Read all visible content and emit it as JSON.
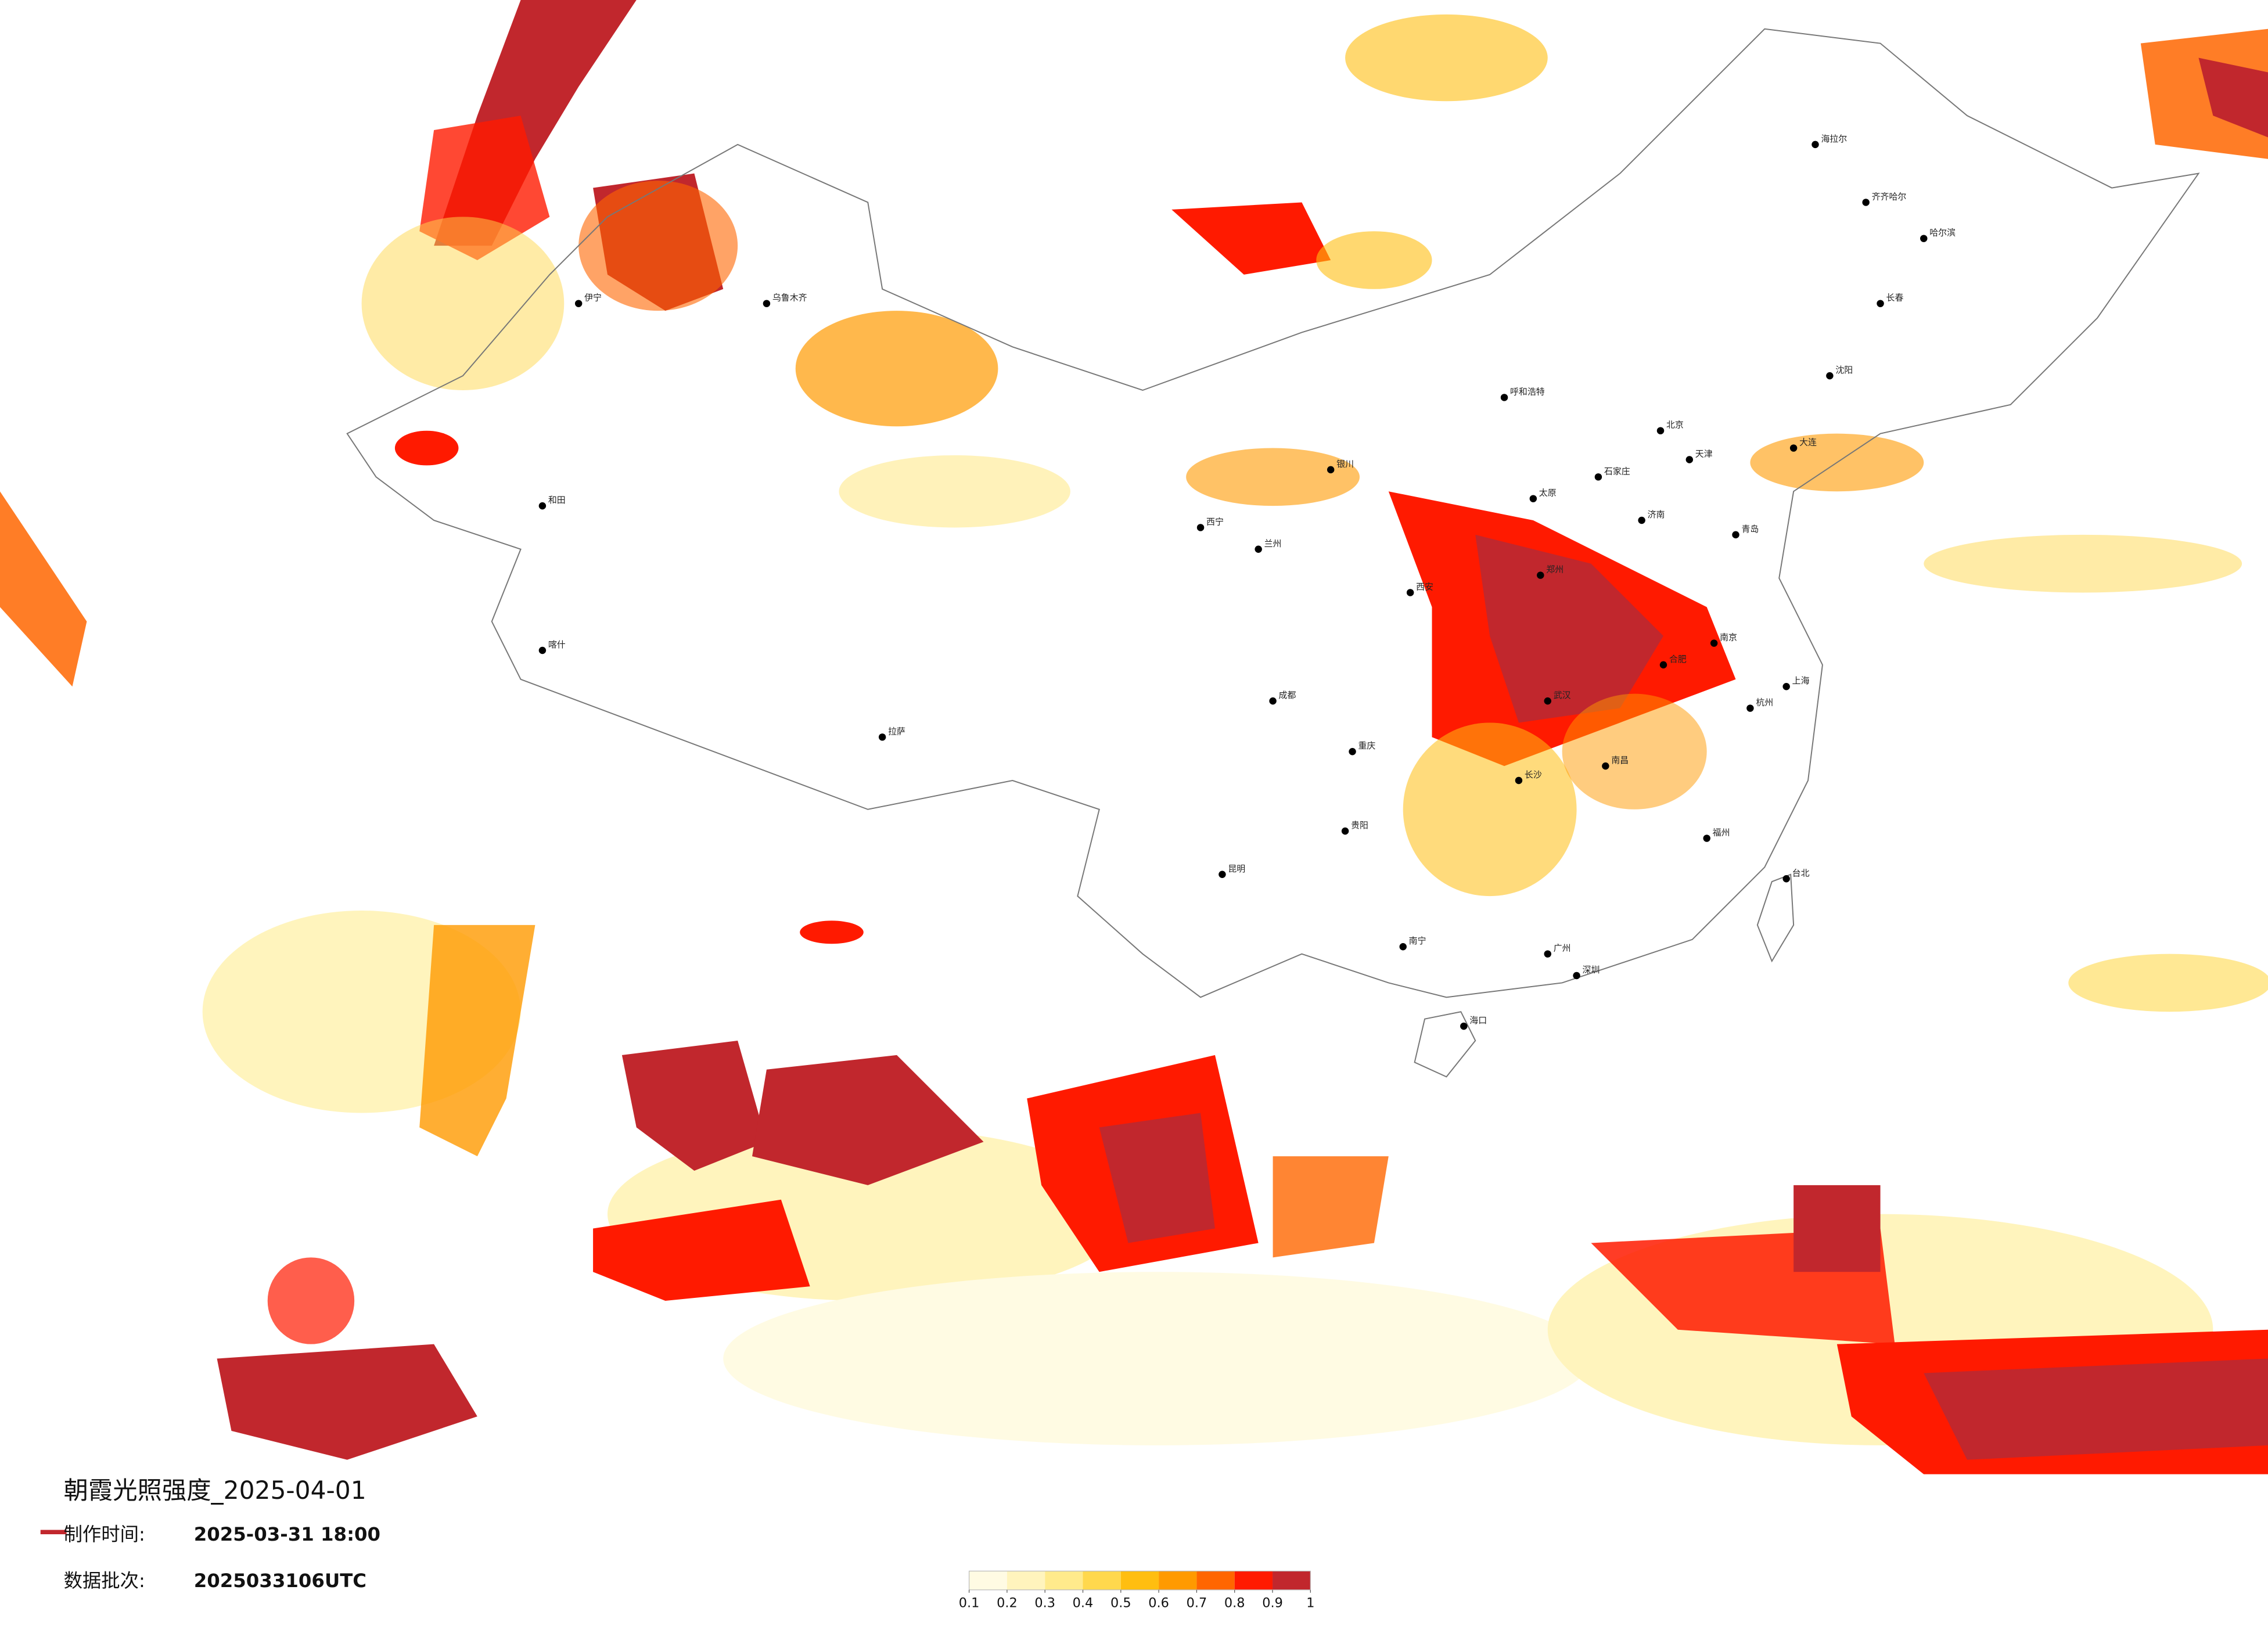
{
  "title": "朝霞光照强度_2025-04-01",
  "made_label": "制作时间:",
  "made_time": "2025-03-31 18:00",
  "batch_label": "数据批次:",
  "batch": "2025033106UTC",
  "colorbar": {
    "ticks": [
      0.1,
      0.2,
      0.3,
      0.4,
      0.5,
      0.6,
      0.7,
      0.8,
      0.9,
      1
    ],
    "colors": [
      "#fffbe3",
      "#fff4bd",
      "#ffea8c",
      "#ffd84d",
      "#ffbe10",
      "#ff9a00",
      "#ff6600",
      "#ff1a00",
      "#c1272d"
    ]
  },
  "cities": [
    "北京",
    "天津",
    "上海",
    "广州",
    "深圳",
    "成都",
    "重庆",
    "武汉",
    "西安",
    "郑州",
    "济南",
    "太原",
    "石家庄",
    "南京",
    "杭州",
    "合肥",
    "南昌",
    "长沙",
    "福州",
    "南宁",
    "贵阳",
    "昆明",
    "海口",
    "台北",
    "兰州",
    "西宁",
    "银川",
    "呼和浩特",
    "乌鲁木齐",
    "拉萨",
    "哈尔滨",
    "长春",
    "沈阳",
    "大连",
    "青岛",
    "喀什",
    "和田",
    "伊宁",
    "齐齐哈尔",
    "海拉尔"
  ]
}
